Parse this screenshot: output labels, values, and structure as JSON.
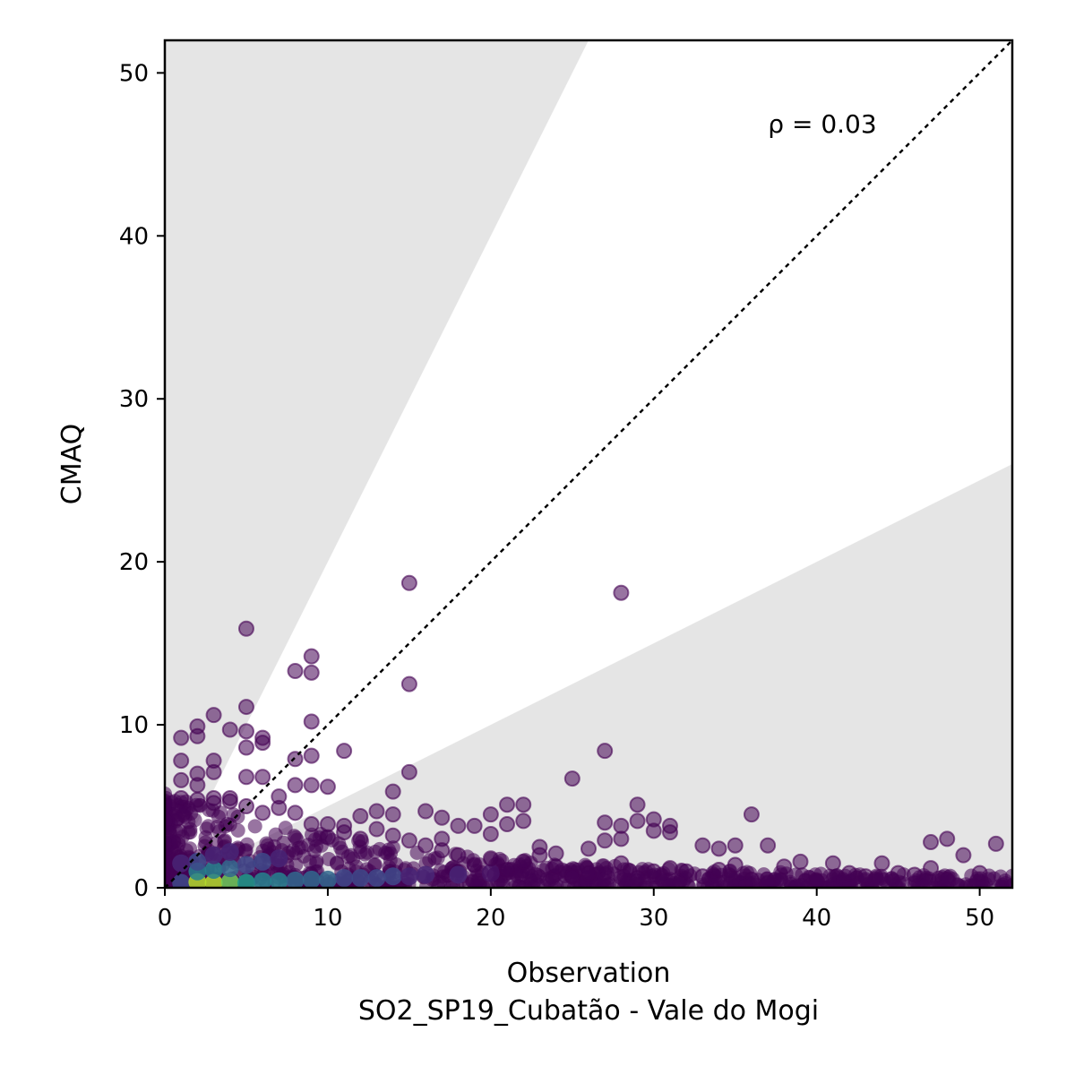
{
  "chart_data": {
    "type": "scatter",
    "title": "",
    "xlabel": "Observation",
    "xlabel_sub": "SO2_SP19_Cubatão - Vale do Mogi",
    "ylabel": "CMAQ",
    "xlim": [
      0,
      52
    ],
    "ylim": [
      0,
      52
    ],
    "xticks": [
      "0",
      "10",
      "20",
      "30",
      "40",
      "50"
    ],
    "yticks": [
      "0",
      "10",
      "20",
      "30",
      "40",
      "50"
    ],
    "annotation": "ρ = 0.03",
    "reference_line": "y = x (dotted)",
    "shaded_band": "outside factor-of-2 range (y > 2x, y < 0.5x)",
    "grid": false,
    "legend": "none",
    "colormap": "viridis (point density)",
    "colors": {
      "shade": "#e5e5e5",
      "low_density": "#440154",
      "mid_density": "#31688e",
      "high_density": "#b5de2b"
    },
    "points": [
      [
        5,
        15.9
      ],
      [
        15,
        18.7
      ],
      [
        28,
        18.1
      ],
      [
        9,
        14.2
      ],
      [
        8,
        13.3
      ],
      [
        9,
        13.2
      ],
      [
        15,
        12.5
      ],
      [
        5,
        11.1
      ],
      [
        3,
        10.6
      ],
      [
        9,
        10.2
      ],
      [
        2,
        9.9
      ],
      [
        4,
        9.7
      ],
      [
        5,
        9.6
      ],
      [
        6,
        9.2
      ],
      [
        1,
        9.2
      ],
      [
        2,
        9.3
      ],
      [
        6,
        8.9
      ],
      [
        5,
        8.6
      ],
      [
        11,
        8.4
      ],
      [
        27,
        8.4
      ],
      [
        9,
        8.1
      ],
      [
        8,
        7.9
      ],
      [
        1,
        7.8
      ],
      [
        3,
        7.8
      ],
      [
        15,
        7.1
      ],
      [
        2,
        7.0
      ],
      [
        3,
        7.1
      ],
      [
        5,
        6.8
      ],
      [
        6,
        6.8
      ],
      [
        25,
        6.7
      ],
      [
        9,
        6.3
      ],
      [
        10,
        6.2
      ],
      [
        8,
        6.3
      ],
      [
        14,
        5.9
      ],
      [
        1,
        5.5
      ],
      [
        3,
        5.5
      ],
      [
        4,
        5.5
      ],
      [
        7,
        5.6
      ],
      [
        2,
        5.4
      ],
      [
        29,
        5.1
      ],
      [
        21,
        5.1
      ],
      [
        22,
        5.1
      ],
      [
        16,
        4.7
      ],
      [
        36,
        4.5
      ],
      [
        20,
        4.5
      ],
      [
        13,
        4.7
      ],
      [
        14,
        4.5
      ],
      [
        12,
        4.4
      ],
      [
        17,
        4.3
      ],
      [
        30,
        4.2
      ],
      [
        29,
        4.1
      ],
      [
        22,
        4.1
      ],
      [
        21,
        3.9
      ],
      [
        31,
        3.8
      ],
      [
        27,
        4.0
      ],
      [
        28,
        3.8
      ],
      [
        19,
        3.8
      ],
      [
        18,
        3.8
      ],
      [
        11,
        3.8
      ],
      [
        10,
        3.9
      ],
      [
        31,
        3.4
      ],
      [
        30,
        3.5
      ],
      [
        20,
        3.3
      ],
      [
        27,
        2.9
      ],
      [
        28,
        3.0
      ],
      [
        17,
        3.0
      ],
      [
        48,
        3.0
      ],
      [
        47,
        2.8
      ],
      [
        51,
        2.7
      ],
      [
        33,
        2.6
      ],
      [
        35,
        2.6
      ],
      [
        37,
        2.6
      ],
      [
        34,
        2.4
      ],
      [
        26,
        2.4
      ],
      [
        23,
        2.5
      ],
      [
        24,
        2.1
      ],
      [
        23,
        2.0
      ],
      [
        49,
        2.0
      ],
      [
        39,
        1.6
      ],
      [
        41,
        1.5
      ],
      [
        44,
        1.5
      ],
      [
        38,
        1.3
      ],
      [
        47,
        1.2
      ],
      [
        42,
        0.9
      ],
      [
        45,
        0.9
      ],
      [
        46,
        0.8
      ],
      [
        43,
        0.7
      ],
      [
        50,
        0.9
      ],
      [
        40,
        0.4
      ],
      [
        37,
        0.3
      ],
      [
        48,
        0.5
      ],
      [
        52,
        0.1
      ],
      [
        33,
        0.7
      ],
      [
        32,
        1.0
      ],
      [
        34,
        1.1
      ],
      [
        35,
        1.4
      ],
      [
        36,
        0.5
      ],
      [
        29,
        0.6
      ],
      [
        30,
        1.0
      ],
      [
        31,
        1.2
      ],
      [
        28,
        1.5
      ],
      [
        26,
        0.9
      ],
      [
        25,
        0.7
      ],
      [
        24,
        1.3
      ],
      [
        22,
        1.6
      ],
      [
        21,
        1.1
      ],
      [
        20,
        1.8
      ],
      [
        19,
        1.4
      ],
      [
        18,
        2.0
      ],
      [
        17,
        2.3
      ],
      [
        16,
        2.6
      ],
      [
        15,
        2.9
      ],
      [
        14,
        3.2
      ],
      [
        13,
        3.6
      ],
      [
        12,
        3.0
      ],
      [
        11,
        3.4
      ],
      [
        10,
        3.1
      ],
      [
        9,
        3.9
      ],
      [
        8,
        4.6
      ],
      [
        7,
        4.9
      ],
      [
        6,
        4.6
      ],
      [
        5,
        5.0
      ],
      [
        4,
        5.3
      ],
      [
        3,
        5.2
      ],
      [
        2,
        6.3
      ],
      [
        1,
        6.6
      ]
    ]
  }
}
